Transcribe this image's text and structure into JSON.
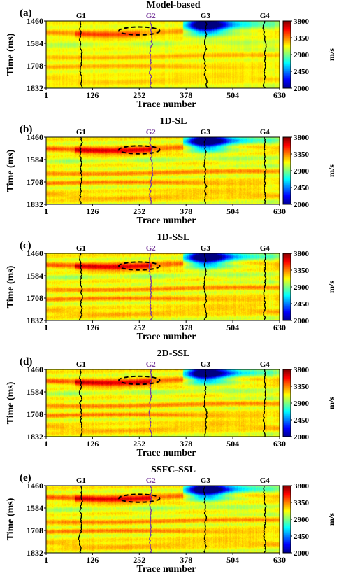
{
  "chart_data": [
    {
      "type": "heatmap",
      "panel_label": "(a)",
      "title": "Model-based",
      "xlabel": "Trace number",
      "ylabel": "Time (ms)",
      "xlim": [
        1,
        630
      ],
      "ylim": [
        1460,
        1832
      ],
      "x_ticks": [
        "1",
        "126",
        "252",
        "378",
        "504",
        "630"
      ],
      "y_ticks": [
        "1460",
        "1584",
        "1708",
        "1832"
      ],
      "colorbar": {
        "label": "m/s",
        "range": [
          2000,
          3800
        ],
        "ticks": [
          "3800",
          "3350",
          "2900",
          "2450",
          "2000"
        ]
      },
      "wells": [
        {
          "name": "G1",
          "trace": 95,
          "color": "#000000"
        },
        {
          "name": "G2",
          "trace": 283,
          "color": "#7a3e9d"
        },
        {
          "name": "G3",
          "trace": 430,
          "color": "#000000"
        },
        {
          "name": "G4",
          "trace": 590,
          "color": "#000000"
        }
      ],
      "ellipse": {
        "trace": 252,
        "time": 1515,
        "half_width_traces": 55,
        "half_height_ms": 22
      }
    },
    {
      "type": "heatmap",
      "panel_label": "(b)",
      "title": "1D-SL",
      "xlabel": "Trace number",
      "ylabel": "Time (ms)",
      "xlim": [
        1,
        630
      ],
      "ylim": [
        1460,
        1832
      ],
      "x_ticks": [
        "1",
        "126",
        "252",
        "378",
        "504",
        "630"
      ],
      "y_ticks": [
        "1460",
        "1584",
        "1708",
        "1832"
      ],
      "colorbar": {
        "label": "m/s",
        "range": [
          2000,
          3800
        ],
        "ticks": [
          "3800",
          "3350",
          "2900",
          "2450",
          "2000"
        ]
      },
      "wells": [
        {
          "name": "G1",
          "trace": 95,
          "color": "#000000"
        },
        {
          "name": "G2",
          "trace": 283,
          "color": "#7a3e9d"
        },
        {
          "name": "G3",
          "trace": 430,
          "color": "#000000"
        },
        {
          "name": "G4",
          "trace": 590,
          "color": "#000000"
        }
      ],
      "ellipse": {
        "trace": 252,
        "time": 1530,
        "half_width_traces": 55,
        "half_height_ms": 22
      }
    },
    {
      "type": "heatmap",
      "panel_label": "(c)",
      "title": "1D-SSL",
      "xlabel": "Trace number",
      "ylabel": "Time (ms)",
      "xlim": [
        1,
        630
      ],
      "ylim": [
        1460,
        1832
      ],
      "x_ticks": [
        "1",
        "126",
        "252",
        "378",
        "504",
        "630"
      ],
      "y_ticks": [
        "1460",
        "1584",
        "1708",
        "1832"
      ],
      "colorbar": {
        "label": "m/s",
        "range": [
          2000,
          3800
        ],
        "ticks": [
          "3800",
          "3350",
          "2900",
          "2450",
          "2000"
        ]
      },
      "wells": [
        {
          "name": "G1",
          "trace": 95,
          "color": "#000000"
        },
        {
          "name": "G2",
          "trace": 283,
          "color": "#7a3e9d"
        },
        {
          "name": "G3",
          "trace": 430,
          "color": "#000000"
        },
        {
          "name": "G4",
          "trace": 590,
          "color": "#000000"
        }
      ],
      "ellipse": {
        "trace": 252,
        "time": 1530,
        "half_width_traces": 55,
        "half_height_ms": 22
      }
    },
    {
      "type": "heatmap",
      "panel_label": "(d)",
      "title": "2D-SSL",
      "xlabel": "Trace number",
      "ylabel": "Time (ms)",
      "xlim": [
        1,
        630
      ],
      "ylim": [
        1460,
        1832
      ],
      "x_ticks": [
        "1",
        "126",
        "252",
        "378",
        "504",
        "630"
      ],
      "y_ticks": [
        "1460",
        "1584",
        "1708",
        "1832"
      ],
      "colorbar": {
        "label": "m/s",
        "range": [
          2000,
          3800
        ],
        "ticks": [
          "3800",
          "3350",
          "2900",
          "2450",
          "2000"
        ]
      },
      "wells": [
        {
          "name": "G1",
          "trace": 95,
          "color": "#000000"
        },
        {
          "name": "G2",
          "trace": 283,
          "color": "#7a3e9d"
        },
        {
          "name": "G3",
          "trace": 430,
          "color": "#000000"
        },
        {
          "name": "G4",
          "trace": 590,
          "color": "#000000"
        }
      ],
      "ellipse": {
        "trace": 252,
        "time": 1520,
        "half_width_traces": 55,
        "half_height_ms": 22
      }
    },
    {
      "type": "heatmap",
      "panel_label": "(e)",
      "title": "SSFC-SSL",
      "xlabel": "Trace number",
      "ylabel": "Time (ms)",
      "xlim": [
        1,
        630
      ],
      "ylim": [
        1460,
        1832
      ],
      "x_ticks": [
        "1",
        "126",
        "252",
        "378",
        "504",
        "630"
      ],
      "y_ticks": [
        "1460",
        "1584",
        "1708",
        "1832"
      ],
      "colorbar": {
        "label": "m/s",
        "range": [
          2000,
          3800
        ],
        "ticks": [
          "3800",
          "3350",
          "2900",
          "2450",
          "2000"
        ]
      },
      "wells": [
        {
          "name": "G1",
          "trace": 95,
          "color": "#000000"
        },
        {
          "name": "G2",
          "trace": 283,
          "color": "#7a3e9d"
        },
        {
          "name": "G3",
          "trace": 430,
          "color": "#000000"
        },
        {
          "name": "G4",
          "trace": 590,
          "color": "#000000"
        }
      ],
      "ellipse": {
        "trace": 252,
        "time": 1530,
        "half_width_traces": 55,
        "half_height_ms": 22
      }
    }
  ]
}
